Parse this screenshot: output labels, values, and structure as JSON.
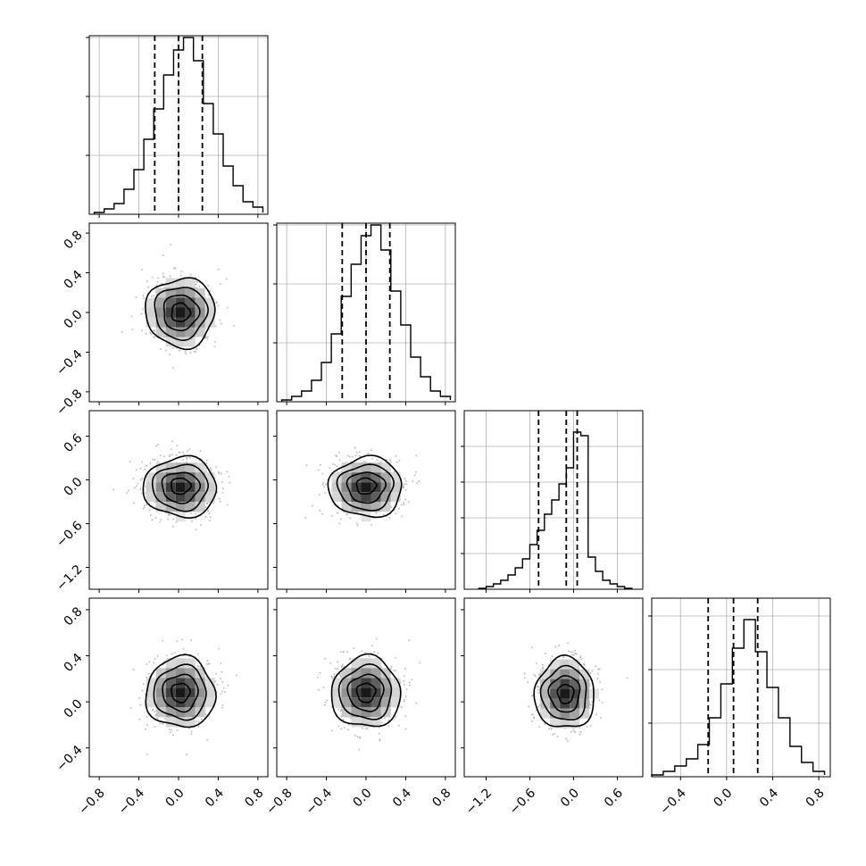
{
  "chart_data": {
    "type": "corner",
    "n_params": 4,
    "grid": true,
    "colors": {
      "line": "#000000",
      "scatter": "#b3b3b3",
      "grid": "#b0b0b0",
      "background": "#ffffff"
    },
    "parameters": [
      {
        "range": [
          -0.9,
          0.9
        ],
        "ticks": [
          -0.8,
          -0.4,
          0.0,
          0.4,
          0.8
        ],
        "tick_labels": [
          "−0.8",
          "−0.4",
          "0.0",
          "0.4",
          "0.8"
        ],
        "hist_ylim": [
          0,
          1.0
        ],
        "hist_yticks": [
          0.33,
          0.66,
          0.99
        ],
        "hist_edges": [
          -0.85,
          -0.75,
          -0.65,
          -0.55,
          -0.45,
          -0.35,
          -0.25,
          -0.15,
          -0.05,
          0.05,
          0.15,
          0.25,
          0.35,
          0.45,
          0.55,
          0.65,
          0.75,
          0.85
        ],
        "hist_counts": [
          0.01,
          0.03,
          0.06,
          0.14,
          0.25,
          0.42,
          0.59,
          0.78,
          0.92,
          0.99,
          0.86,
          0.62,
          0.45,
          0.27,
          0.16,
          0.07,
          0.04,
          0.01
        ],
        "quantiles": [
          -0.24,
          0.0,
          0.24
        ],
        "center": 0.02,
        "spread": 0.26
      },
      {
        "range": [
          -0.9,
          0.9
        ],
        "ticks": [
          -0.8,
          -0.4,
          0.0,
          0.4,
          0.8
        ],
        "tick_labels": [
          "−0.8",
          "−0.4",
          "0.0",
          "0.4",
          "0.8"
        ],
        "hist_ylim": [
          0,
          1.0
        ],
        "hist_yticks": [
          0.33,
          0.66,
          0.99
        ],
        "hist_edges": [
          -0.85,
          -0.75,
          -0.65,
          -0.55,
          -0.45,
          -0.35,
          -0.25,
          -0.15,
          -0.05,
          0.05,
          0.15,
          0.25,
          0.35,
          0.45,
          0.55,
          0.65,
          0.75,
          0.85
        ],
        "hist_counts": [
          0.01,
          0.03,
          0.06,
          0.12,
          0.22,
          0.38,
          0.59,
          0.77,
          0.93,
          0.99,
          0.85,
          0.62,
          0.43,
          0.25,
          0.14,
          0.06,
          0.03,
          0.01
        ],
        "quantiles": [
          -0.24,
          0.0,
          0.24
        ],
        "center": 0.0,
        "spread": 0.26
      },
      {
        "range": [
          -1.5,
          0.95
        ],
        "ticks": [
          -1.2,
          -0.6,
          0.0,
          0.6
        ],
        "tick_labels": [
          "−1.2",
          "−0.6",
          "0.0",
          "0.6"
        ],
        "hist_ylim": [
          0,
          1.0
        ],
        "hist_yticks": [
          0.2,
          0.4,
          0.6,
          0.8
        ],
        "hist_edges": [
          -1.3,
          -1.2,
          -1.1,
          -1.0,
          -0.9,
          -0.8,
          -0.7,
          -0.6,
          -0.5,
          -0.4,
          -0.3,
          -0.2,
          -0.1,
          0.0,
          0.1,
          0.2,
          0.3,
          0.4,
          0.5,
          0.6,
          0.7,
          0.8
        ],
        "hist_counts": [
          0.005,
          0.015,
          0.03,
          0.05,
          0.08,
          0.12,
          0.17,
          0.25,
          0.33,
          0.42,
          0.5,
          0.59,
          0.68,
          0.88,
          0.86,
          0.18,
          0.1,
          0.05,
          0.03,
          0.015,
          0.005
        ],
        "quantiles": [
          -0.48,
          -0.1,
          0.05
        ],
        "center": -0.1,
        "spread": 0.3
      },
      {
        "range": [
          -0.65,
          0.9
        ],
        "ticks": [
          -0.4,
          0.0,
          0.4,
          0.8
        ],
        "tick_labels": [
          "−0.4",
          "0.0",
          "0.4",
          "0.8"
        ],
        "hist_ylim": [
          0,
          1.0
        ],
        "hist_yticks": [
          0.3,
          0.6,
          0.9
        ],
        "hist_edges": [
          -0.65,
          -0.55,
          -0.45,
          -0.35,
          -0.25,
          -0.15,
          -0.05,
          0.05,
          0.15,
          0.25,
          0.35,
          0.45,
          0.55,
          0.65,
          0.75,
          0.85
        ],
        "hist_counts": [
          0.01,
          0.03,
          0.06,
          0.1,
          0.18,
          0.33,
          0.52,
          0.72,
          0.88,
          0.7,
          0.5,
          0.33,
          0.17,
          0.08,
          0.03,
          0.01
        ],
        "quantiles": [
          -0.16,
          0.06,
          0.27
        ],
        "center": 0.07,
        "spread": 0.22
      }
    ],
    "joint": [
      {
        "row": 1,
        "col": 0,
        "center": [
          0.02,
          0.0
        ],
        "sigma": [
          0.17,
          0.17
        ],
        "peak_offset": [
          0.0,
          0.0
        ]
      },
      {
        "row": 2,
        "col": 0,
        "center": [
          0.02,
          -0.1
        ],
        "sigma": [
          0.18,
          0.2
        ],
        "peak_offset": [
          0.0,
          0.08
        ]
      },
      {
        "row": 2,
        "col": 1,
        "center": [
          0.0,
          -0.1
        ],
        "sigma": [
          0.18,
          0.2
        ],
        "peak_offset": [
          0.0,
          0.08
        ]
      },
      {
        "row": 3,
        "col": 0,
        "center": [
          0.02,
          0.08
        ],
        "sigma": [
          0.17,
          0.15
        ],
        "peak_offset": [
          0.0,
          0.0
        ]
      },
      {
        "row": 3,
        "col": 1,
        "center": [
          0.0,
          0.08
        ],
        "sigma": [
          0.17,
          0.15
        ],
        "peak_offset": [
          0.0,
          0.0
        ]
      },
      {
        "row": 3,
        "col": 2,
        "center": [
          -0.12,
          0.07
        ],
        "sigma": [
          0.2,
          0.15
        ],
        "peak_offset": [
          0.06,
          0.0
        ]
      }
    ]
  }
}
